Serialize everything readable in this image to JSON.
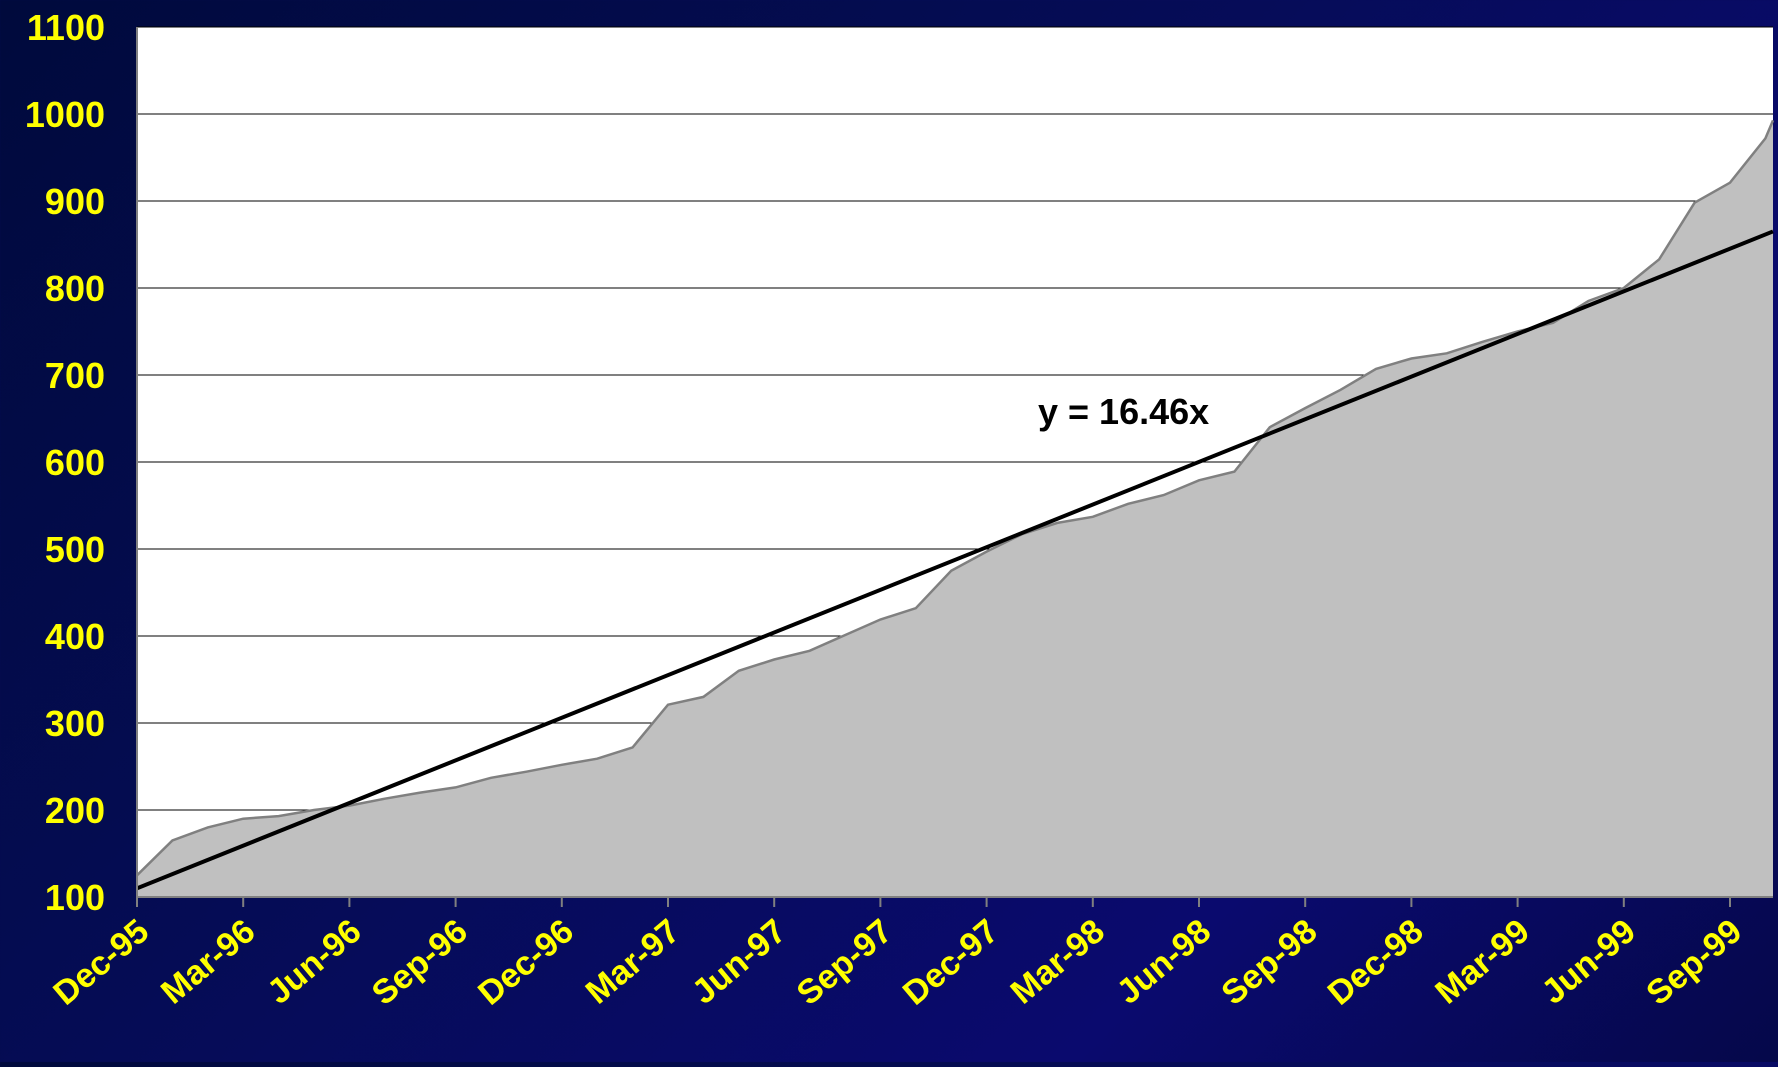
{
  "chart_data": {
    "type": "area",
    "title": "",
    "xlabel": "",
    "ylabel": "",
    "ylim": [
      100,
      1100
    ],
    "yticks": [
      "100",
      "200",
      "300",
      "400",
      "500",
      "600",
      "700",
      "800",
      "900",
      "1000",
      "1100"
    ],
    "xticks": [
      "Dec-95",
      "Mar-96",
      "Jun-96",
      "Sep-96",
      "Dec-96",
      "Mar-97",
      "Jun-97",
      "Sep-97",
      "Dec-97",
      "Mar-98",
      "Jun-98",
      "Sep-98",
      "Dec-98",
      "Mar-99",
      "Jun-99",
      "Sep-99"
    ],
    "grid": "horizontal",
    "series": [
      {
        "x": [
          "Dec-95",
          "Jan-96",
          "Feb-96",
          "Mar-96",
          "Apr-96",
          "May-96",
          "Jun-96",
          "Jul-96",
          "Aug-96",
          "Sep-96",
          "Oct-96",
          "Nov-96",
          "Dec-96",
          "Jan-97",
          "Feb-97",
          "Mar-97",
          "Apr-97",
          "May-97",
          "Jun-97",
          "Jul-97",
          "Aug-97",
          "Sep-97",
          "Oct-97",
          "Nov-97",
          "Dec-97",
          "Jan-98",
          "Feb-98",
          "Mar-98",
          "Apr-98",
          "May-98",
          "Jun-98",
          "Jul-98",
          "Aug-98",
          "Sep-98",
          "Oct-98",
          "Nov-98",
          "Dec-98",
          "Jan-99",
          "Feb-99",
          "Mar-99",
          "Apr-99",
          "May-99",
          "Jun-99",
          "Jul-99",
          "Aug-99",
          "Sep-99",
          "Oct-99",
          "Nov-99"
        ],
        "values": [
          125,
          165,
          180,
          190,
          193,
          200,
          205,
          213,
          220,
          226,
          237,
          244,
          252,
          259,
          272,
          321,
          330,
          360,
          373,
          383,
          401,
          419,
          432,
          475,
          497,
          517,
          530,
          537,
          552,
          562,
          579,
          589,
          640,
          662,
          683,
          707,
          719,
          725,
          738,
          750,
          760,
          785,
          800,
          833,
          898,
          921,
          972,
          null
        ]
      }
    ],
    "trendline": {
      "label": "y = 16.46x",
      "start": 110,
      "slope": 16.46
    },
    "colors": {
      "area_fill": "#c0c0c0",
      "area_edge": "#808080",
      "trendline": "#000000",
      "plot_bg": "#ffffff",
      "gridline": "#000000",
      "tick_text": "#ffff00"
    }
  }
}
